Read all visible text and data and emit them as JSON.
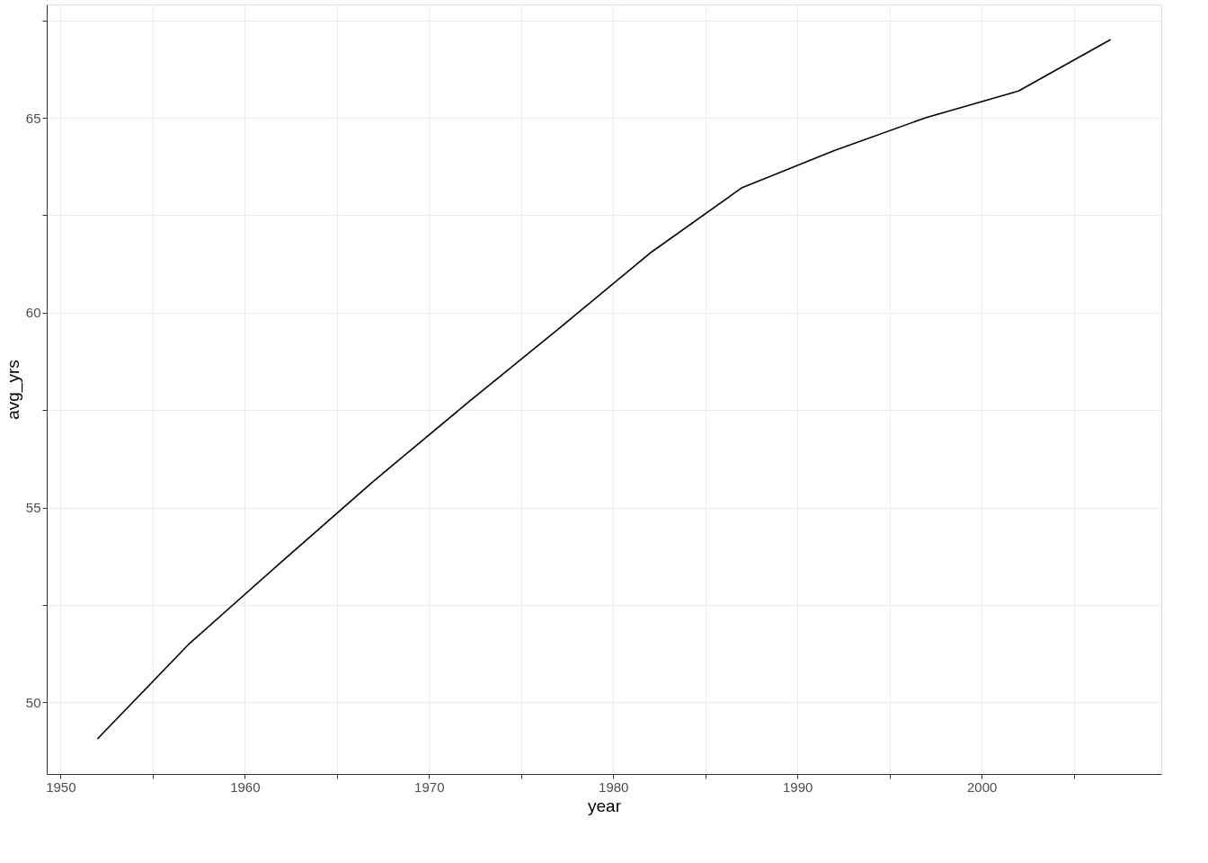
{
  "chart_data": {
    "type": "line",
    "xlabel": "year",
    "ylabel": "avg_yrs",
    "x": [
      1952,
      1957,
      1962,
      1967,
      1972,
      1977,
      1982,
      1987,
      1992,
      1997,
      2002,
      2007
    ],
    "series": [
      {
        "color": "#000000",
        "values": [
          49.06,
          51.51,
          53.61,
          55.68,
          57.65,
          59.57,
          61.53,
          63.21,
          64.16,
          65.01,
          65.69,
          67.01
        ]
      }
    ],
    "xlim": [
      1949.25,
      2009.75
    ],
    "xticks": [
      1950,
      {
        "value": 1955,
        "label": null
      },
      1960,
      {
        "value": 1965,
        "label": null
      },
      1970,
      {
        "value": 1975,
        "label": null
      },
      1980,
      {
        "value": 1985,
        "label": null
      },
      1990,
      {
        "value": 1995,
        "label": null
      },
      2000,
      {
        "value": 2005,
        "label": null
      }
    ],
    "ylim": [
      48.16,
      67.91
    ],
    "yticks": [
      50,
      {
        "value": 52.5,
        "label": null
      },
      55,
      {
        "value": 57.5,
        "label": null
      },
      60,
      {
        "value": 62.5,
        "label": null
      },
      65,
      {
        "value": 67.5,
        "label": null
      }
    ],
    "grid": true,
    "marker": "none",
    "line_style": "solid"
  }
}
